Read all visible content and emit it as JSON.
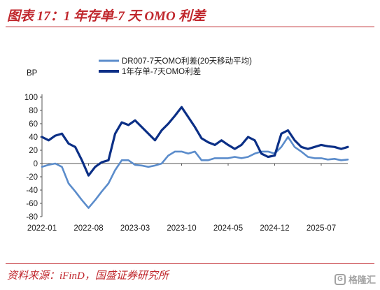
{
  "title": "图表 17：1 年存单-7 天 OMO 利差",
  "source": "资料来源：iFinD，国盛证券研究所",
  "watermark": "格隆汇",
  "colors": {
    "accent": "#c0272d",
    "series_light": "#5b8ccb",
    "series_dark": "#0b2f86"
  },
  "chart_data": {
    "type": "line",
    "ylabel": "BP",
    "ylim": [
      -80,
      100
    ],
    "yticks": [
      -80,
      -60,
      -40,
      -20,
      0,
      20,
      40,
      60,
      80,
      100
    ],
    "xlim": [
      "2022-01",
      "2025-11"
    ],
    "xticks": [
      "2022-01",
      "2022-08",
      "2023-03",
      "2023-10",
      "2024-05",
      "2024-12",
      "2025-07"
    ],
    "legend_position": "top",
    "grid": false,
    "series": [
      {
        "name": "DR007-7天OMO利差(20天移动平均)",
        "color": "#5b8ccb",
        "points": [
          [
            "2022-01",
            -5
          ],
          [
            "2022-02",
            -2
          ],
          [
            "2022-03",
            0
          ],
          [
            "2022-04",
            -5
          ],
          [
            "2022-05",
            -30
          ],
          [
            "2022-06",
            -42
          ],
          [
            "2022-07",
            -55
          ],
          [
            "2022-08",
            -67
          ],
          [
            "2022-09",
            -55
          ],
          [
            "2022-10",
            -42
          ],
          [
            "2022-11",
            -30
          ],
          [
            "2022-12",
            -10
          ],
          [
            "2023-01",
            5
          ],
          [
            "2023-02",
            5
          ],
          [
            "2023-03",
            -2
          ],
          [
            "2023-04",
            -3
          ],
          [
            "2023-05",
            -5
          ],
          [
            "2023-06",
            -3
          ],
          [
            "2023-07",
            0
          ],
          [
            "2023-08",
            12
          ],
          [
            "2023-09",
            18
          ],
          [
            "2023-10",
            18
          ],
          [
            "2023-11",
            15
          ],
          [
            "2023-12",
            18
          ],
          [
            "2024-01",
            5
          ],
          [
            "2024-02",
            5
          ],
          [
            "2024-03",
            8
          ],
          [
            "2024-04",
            8
          ],
          [
            "2024-05",
            8
          ],
          [
            "2024-06",
            10
          ],
          [
            "2024-07",
            8
          ],
          [
            "2024-08",
            10
          ],
          [
            "2024-09",
            15
          ],
          [
            "2024-10",
            18
          ],
          [
            "2024-11",
            18
          ],
          [
            "2024-12",
            15
          ],
          [
            "2025-01",
            25
          ],
          [
            "2025-02",
            40
          ],
          [
            "2025-03",
            25
          ],
          [
            "2025-04",
            18
          ],
          [
            "2025-05",
            10
          ],
          [
            "2025-06",
            8
          ],
          [
            "2025-07",
            8
          ],
          [
            "2025-08",
            6
          ],
          [
            "2025-09",
            7
          ],
          [
            "2025-10",
            5
          ],
          [
            "2025-11",
            6
          ]
        ]
      },
      {
        "name": "1年存单-7天OMO利差",
        "color": "#0b2f86",
        "points": [
          [
            "2022-01",
            40
          ],
          [
            "2022-02",
            35
          ],
          [
            "2022-03",
            42
          ],
          [
            "2022-04",
            45
          ],
          [
            "2022-05",
            30
          ],
          [
            "2022-06",
            25
          ],
          [
            "2022-07",
            5
          ],
          [
            "2022-08",
            -18
          ],
          [
            "2022-09",
            -5
          ],
          [
            "2022-10",
            2
          ],
          [
            "2022-11",
            5
          ],
          [
            "2022-12",
            45
          ],
          [
            "2023-01",
            62
          ],
          [
            "2023-02",
            58
          ],
          [
            "2023-03",
            65
          ],
          [
            "2023-04",
            55
          ],
          [
            "2023-05",
            45
          ],
          [
            "2023-06",
            35
          ],
          [
            "2023-07",
            50
          ],
          [
            "2023-08",
            60
          ],
          [
            "2023-09",
            72
          ],
          [
            "2023-10",
            85
          ],
          [
            "2023-11",
            70
          ],
          [
            "2023-12",
            55
          ],
          [
            "2024-01",
            38
          ],
          [
            "2024-02",
            32
          ],
          [
            "2024-03",
            28
          ],
          [
            "2024-04",
            35
          ],
          [
            "2024-05",
            28
          ],
          [
            "2024-06",
            22
          ],
          [
            "2024-07",
            28
          ],
          [
            "2024-08",
            40
          ],
          [
            "2024-09",
            35
          ],
          [
            "2024-10",
            15
          ],
          [
            "2024-11",
            10
          ],
          [
            "2024-12",
            12
          ],
          [
            "2025-01",
            45
          ],
          [
            "2025-02",
            50
          ],
          [
            "2025-03",
            35
          ],
          [
            "2025-04",
            25
          ],
          [
            "2025-05",
            22
          ],
          [
            "2025-06",
            25
          ],
          [
            "2025-07",
            28
          ],
          [
            "2025-08",
            26
          ],
          [
            "2025-09",
            25
          ],
          [
            "2025-10",
            22
          ],
          [
            "2025-11",
            25
          ]
        ]
      }
    ]
  }
}
